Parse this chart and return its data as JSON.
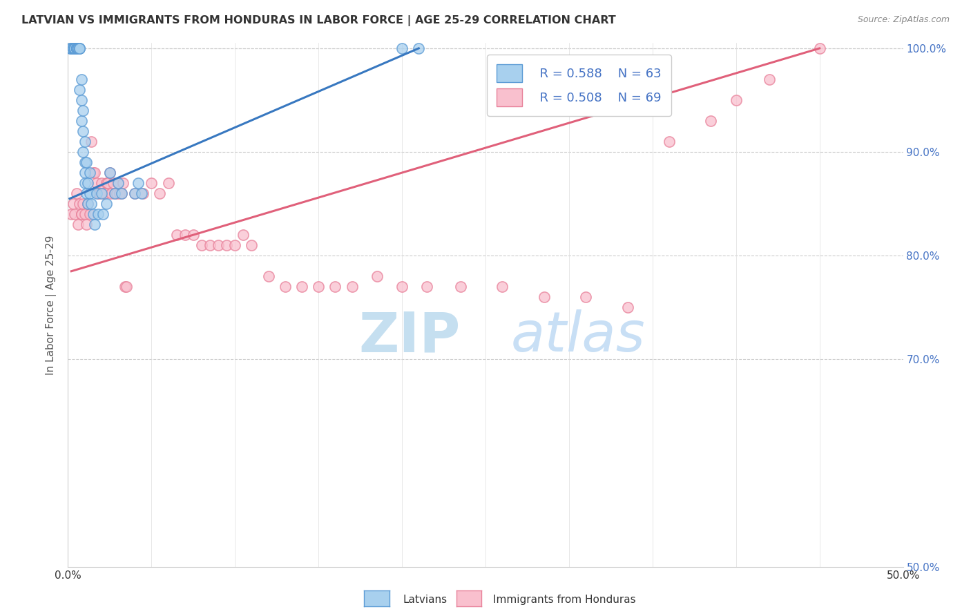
{
  "title": "LATVIAN VS IMMIGRANTS FROM HONDURAS IN LABOR FORCE | AGE 25-29 CORRELATION CHART",
  "source": "Source: ZipAtlas.com",
  "ylabel": "In Labor Force | Age 25-29",
  "xlim": [
    0.0,
    0.5
  ],
  "ylim": [
    0.5,
    1.005
  ],
  "xticks": [
    0.0,
    0.05,
    0.1,
    0.15,
    0.2,
    0.25,
    0.3,
    0.35,
    0.4,
    0.45,
    0.5
  ],
  "yticks": [
    0.5,
    0.55,
    0.6,
    0.65,
    0.7,
    0.75,
    0.8,
    0.85,
    0.9,
    0.95,
    1.0
  ],
  "right_yticks": [
    0.5,
    0.7,
    0.8,
    0.9,
    1.0
  ],
  "right_ytick_labels": [
    "50.0%",
    "70.0%",
    "80.0%",
    "90.0%",
    "100.0%"
  ],
  "legend_r1": "R = 0.588",
  "legend_n1": "N = 63",
  "legend_r2": "R = 0.508",
  "legend_n2": "N = 69",
  "latvian_color": "#a8d0ee",
  "honduran_color": "#f9c0ce",
  "latvian_edge_color": "#5b9bd5",
  "honduran_edge_color": "#e8819a",
  "latvian_line_color": "#3878c0",
  "honduran_line_color": "#e0607a",
  "watermark_zip_color": "#c5dff0",
  "watermark_atlas_color": "#c8dff5",
  "latvian_x": [
    0.001,
    0.002,
    0.002,
    0.003,
    0.003,
    0.003,
    0.003,
    0.003,
    0.004,
    0.004,
    0.004,
    0.004,
    0.004,
    0.004,
    0.005,
    0.005,
    0.005,
    0.005,
    0.005,
    0.005,
    0.005,
    0.006,
    0.006,
    0.006,
    0.006,
    0.006,
    0.007,
    0.007,
    0.007,
    0.007,
    0.008,
    0.008,
    0.008,
    0.009,
    0.009,
    0.009,
    0.01,
    0.01,
    0.01,
    0.01,
    0.011,
    0.011,
    0.012,
    0.012,
    0.013,
    0.013,
    0.014,
    0.015,
    0.016,
    0.017,
    0.018,
    0.02,
    0.021,
    0.023,
    0.025,
    0.028,
    0.03,
    0.032,
    0.04,
    0.042,
    0.044,
    0.2,
    0.21
  ],
  "latvian_y": [
    1.0,
    1.0,
    1.0,
    1.0,
    1.0,
    1.0,
    1.0,
    1.0,
    1.0,
    1.0,
    1.0,
    1.0,
    1.0,
    1.0,
    1.0,
    1.0,
    1.0,
    1.0,
    1.0,
    1.0,
    1.0,
    1.0,
    1.0,
    1.0,
    1.0,
    1.0,
    1.0,
    1.0,
    1.0,
    0.96,
    0.97,
    0.95,
    0.93,
    0.94,
    0.92,
    0.9,
    0.91,
    0.89,
    0.88,
    0.87,
    0.89,
    0.86,
    0.87,
    0.85,
    0.88,
    0.86,
    0.85,
    0.84,
    0.83,
    0.86,
    0.84,
    0.86,
    0.84,
    0.85,
    0.88,
    0.86,
    0.87,
    0.86,
    0.86,
    0.87,
    0.86,
    1.0,
    1.0
  ],
  "honduran_x": [
    0.002,
    0.003,
    0.004,
    0.005,
    0.006,
    0.007,
    0.008,
    0.008,
    0.009,
    0.01,
    0.011,
    0.012,
    0.013,
    0.014,
    0.015,
    0.016,
    0.017,
    0.018,
    0.019,
    0.02,
    0.021,
    0.022,
    0.023,
    0.024,
    0.025,
    0.026,
    0.027,
    0.028,
    0.029,
    0.03,
    0.031,
    0.032,
    0.033,
    0.034,
    0.035,
    0.04,
    0.045,
    0.05,
    0.055,
    0.06,
    0.065,
    0.07,
    0.075,
    0.08,
    0.085,
    0.09,
    0.095,
    0.1,
    0.105,
    0.11,
    0.12,
    0.13,
    0.14,
    0.15,
    0.16,
    0.17,
    0.185,
    0.2,
    0.215,
    0.235,
    0.26,
    0.285,
    0.31,
    0.335,
    0.36,
    0.385,
    0.4,
    0.42,
    0.45
  ],
  "honduran_y": [
    0.84,
    0.85,
    0.84,
    0.86,
    0.83,
    0.85,
    0.84,
    0.84,
    0.85,
    0.84,
    0.83,
    0.85,
    0.84,
    0.91,
    0.88,
    0.88,
    0.87,
    0.86,
    0.86,
    0.87,
    0.86,
    0.86,
    0.87,
    0.87,
    0.88,
    0.86,
    0.87,
    0.86,
    0.86,
    0.87,
    0.86,
    0.86,
    0.87,
    0.77,
    0.77,
    0.86,
    0.86,
    0.87,
    0.86,
    0.87,
    0.82,
    0.82,
    0.82,
    0.81,
    0.81,
    0.81,
    0.81,
    0.81,
    0.82,
    0.81,
    0.78,
    0.77,
    0.77,
    0.77,
    0.77,
    0.77,
    0.78,
    0.77,
    0.77,
    0.77,
    0.77,
    0.76,
    0.76,
    0.75,
    0.91,
    0.93,
    0.95,
    0.97,
    1.0
  ],
  "honduran_line_x": [
    0.002,
    0.45
  ],
  "honduran_line_y": [
    0.785,
    1.0
  ],
  "latvian_line_x": [
    0.001,
    0.21
  ],
  "latvian_line_y": [
    0.855,
    1.0
  ]
}
